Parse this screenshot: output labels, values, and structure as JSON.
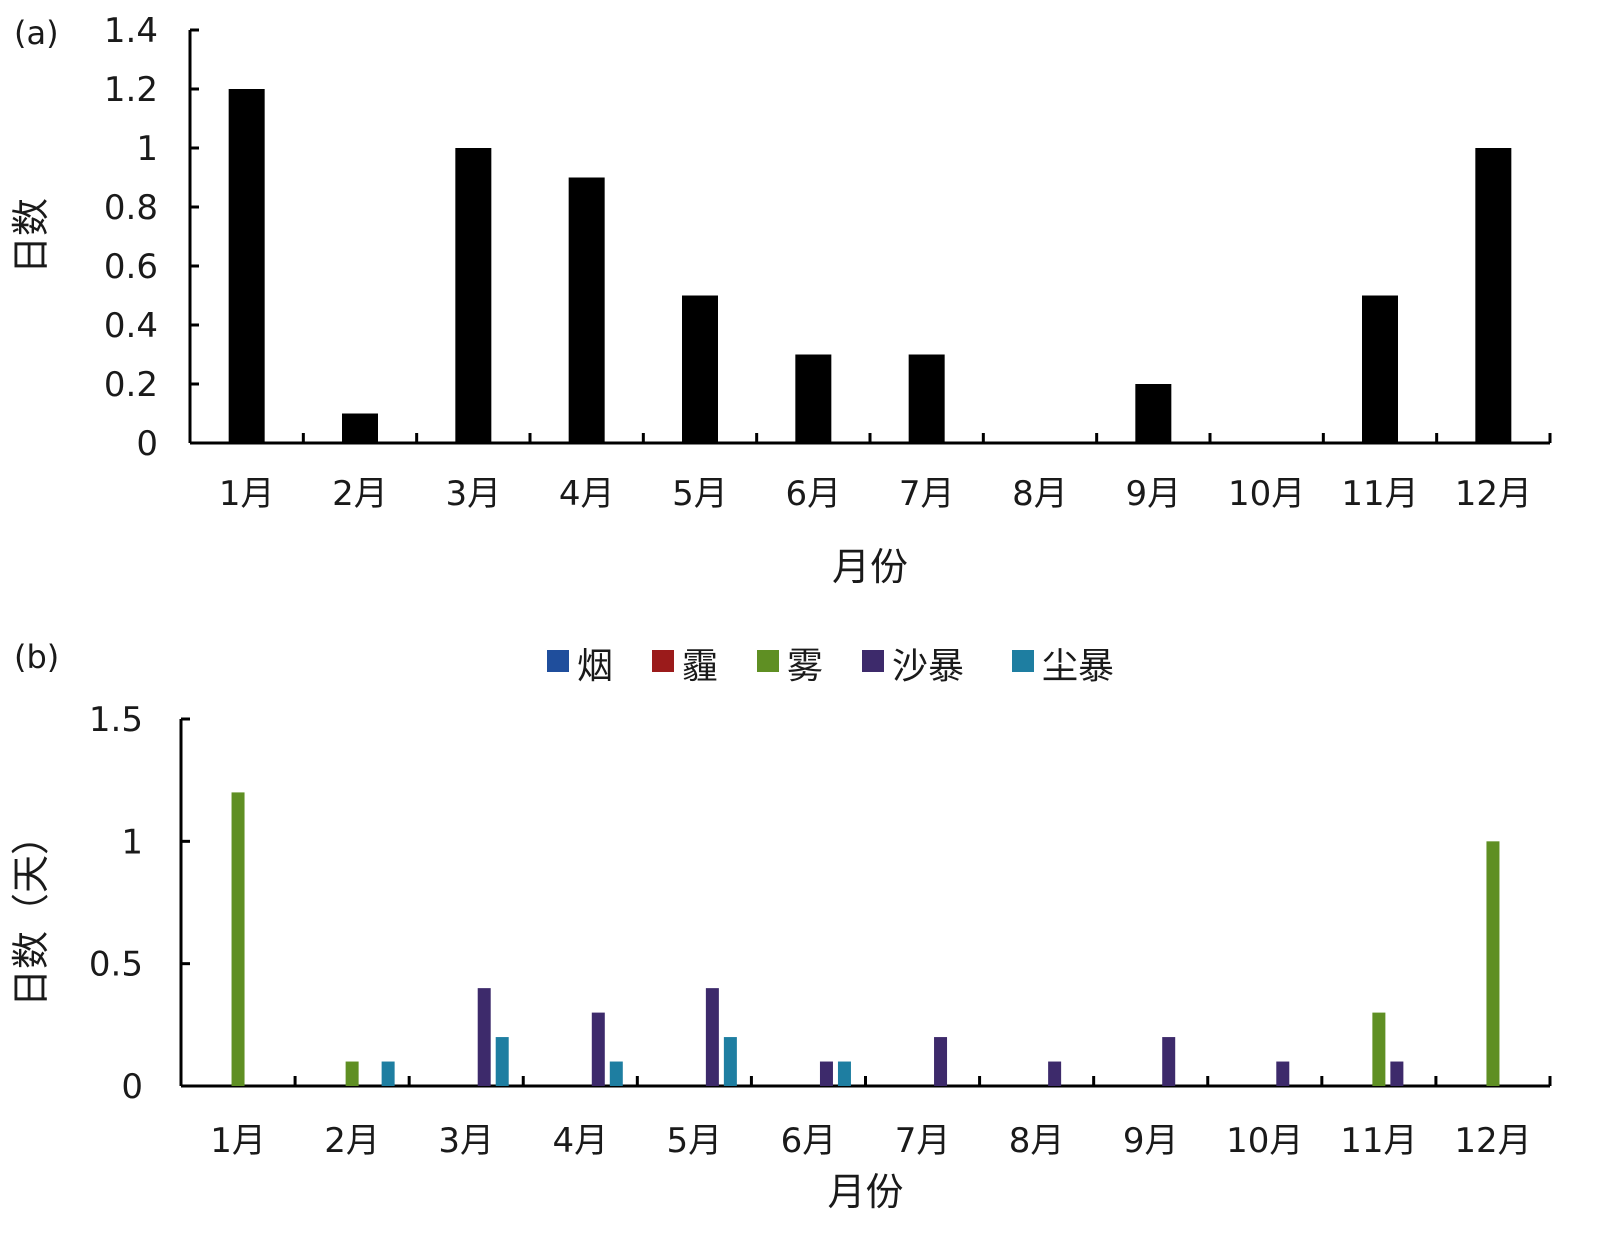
{
  "chart_data": [
    {
      "type": "bar",
      "panel_label": "(a)",
      "categories": [
        "1月",
        "2月",
        "3月",
        "4月",
        "5月",
        "6月",
        "7月",
        "8月",
        "9月",
        "10月",
        "11月",
        "12月"
      ],
      "values": [
        1.2,
        0.1,
        1.0,
        0.9,
        0.5,
        0.3,
        0.3,
        0,
        0.2,
        0,
        0.5,
        1.0
      ],
      "xlabel": "月份",
      "ylabel": "日数",
      "ylim": [
        0,
        1.4
      ],
      "yticks": [
        "0",
        "0.2",
        "0.4",
        "0.6",
        "0.8",
        "1",
        "1.2",
        "1.4"
      ],
      "bar_color": "#000000",
      "grid": false,
      "legend": "none"
    },
    {
      "type": "bar",
      "panel_label": "(b)",
      "categories": [
        "1月",
        "2月",
        "3月",
        "4月",
        "5月",
        "6月",
        "7月",
        "8月",
        "9月",
        "10月",
        "11月",
        "12月"
      ],
      "series": [
        {
          "name": "烟",
          "color": "#1f4e9c",
          "values": [
            0,
            0,
            0,
            0,
            0,
            0,
            0,
            0,
            0,
            0,
            0,
            0
          ]
        },
        {
          "name": "霾",
          "color": "#9b1b1b",
          "values": [
            0,
            0,
            0,
            0,
            0,
            0,
            0,
            0,
            0,
            0,
            0,
            0
          ]
        },
        {
          "name": "雾",
          "color": "#5f8f23",
          "values": [
            1.2,
            0.1,
            0,
            0,
            0,
            0,
            0,
            0,
            0,
            0,
            0.3,
            1.0
          ]
        },
        {
          "name": "沙暴",
          "color": "#3d2a6b",
          "values": [
            0,
            0,
            0.4,
            0.3,
            0.4,
            0.1,
            0.2,
            0.1,
            0.2,
            0.1,
            0.1,
            0
          ]
        },
        {
          "name": "尘暴",
          "color": "#1e7ea1",
          "values": [
            0,
            0.1,
            0.2,
            0.1,
            0.2,
            0.1,
            0,
            0,
            0,
            0,
            0,
            0
          ]
        }
      ],
      "xlabel": "月份",
      "ylabel": "日数（天）",
      "ylim": [
        0,
        1.5
      ],
      "yticks": [
        "0",
        "0.5",
        "1",
        "1.5"
      ],
      "grid": false,
      "legend": "top"
    }
  ]
}
